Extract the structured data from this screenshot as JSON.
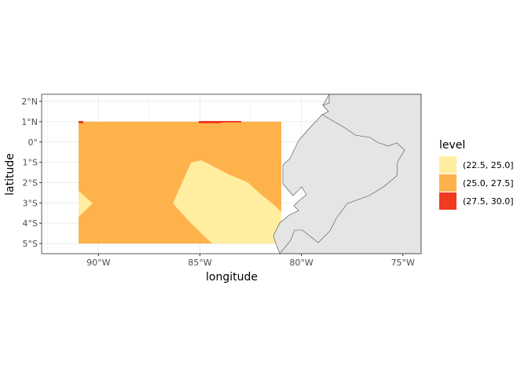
{
  "map": {
    "x_axis": {
      "title": "longitude",
      "ticks": [
        {
          "lon": -90,
          "label": "90°W"
        },
        {
          "lon": -85,
          "label": "85°W"
        },
        {
          "lon": -80,
          "label": "80°W"
        },
        {
          "lon": -75,
          "label": "75°W"
        }
      ],
      "range": [
        -92.8,
        -74.1
      ]
    },
    "y_axis": {
      "title": "latitude",
      "ticks": [
        {
          "lat": 2,
          "label": "2°N"
        },
        {
          "lat": 1,
          "label": "1°N"
        },
        {
          "lat": 0,
          "label": "0°"
        },
        {
          "lat": -1,
          "label": "1°S"
        },
        {
          "lat": -2,
          "label": "2°S"
        },
        {
          "lat": -3,
          "label": "3°S"
        },
        {
          "lat": -4,
          "label": "4°S"
        },
        {
          "lat": -5,
          "label": "5°S"
        }
      ],
      "range": [
        -5.5,
        2.35
      ]
    },
    "legend": {
      "title": "level",
      "items": [
        {
          "label": "(22.5, 25.0]",
          "color": "#FFEDA0"
        },
        {
          "label": "(25.0, 27.5]",
          "color": "#FEB24C"
        },
        {
          "label": "(27.5, 30.0]",
          "color": "#F03B20"
        }
      ]
    },
    "colors": {
      "land": "#e5e5e5",
      "coast": "#4d4d4d",
      "grid": "#ebebeb",
      "panel_border": "#333333"
    }
  }
}
